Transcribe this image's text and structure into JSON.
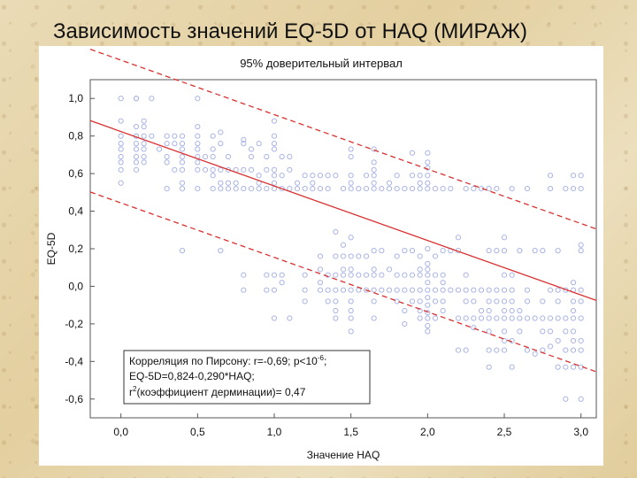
{
  "slide": {
    "title": "Зависимость значений EQ-5D от HAQ (МИРАЖ)"
  },
  "chart_data": {
    "type": "scatter",
    "title": "95% доверительный интервал",
    "xlabel": "Значение HAQ",
    "ylabel": "EQ-5D",
    "xlim": [
      -0.2,
      3.1
    ],
    "ylim": [
      -0.7,
      1.1
    ],
    "xticks": [
      0.0,
      0.5,
      1.0,
      1.5,
      2.0,
      2.5,
      3.0
    ],
    "xtick_labels": [
      "0,0",
      "0,5",
      "1,0",
      "1,5",
      "2,0",
      "2,5",
      "3,0"
    ],
    "yticks": [
      -0.6,
      -0.4,
      -0.2,
      0.0,
      0.2,
      0.4,
      0.6,
      0.8,
      1.0
    ],
    "ytick_labels": [
      "-0,6",
      "-0,4",
      "-0,2",
      "0,0",
      "0,2",
      "0,4",
      "0,6",
      "0,8",
      "1,0"
    ],
    "grid": false,
    "colors": {
      "points": "#a9b4e6",
      "fit": "#d93030",
      "ci": "#d93030"
    },
    "fit_line": {
      "intercept": 0.824,
      "slope": -0.29
    },
    "ci_band": {
      "upper_offset": 0.38,
      "lower_offset": -0.38
    },
    "annotation": {
      "line1_prefix": "Корреляция по Пирсону: r=-0,69; p<10",
      "line1_exp": "-6",
      "line1_suffix": ";",
      "line2": "EQ-5D=0,824-0,290*HAQ;",
      "line3_r": "r",
      "line3_exp": "2",
      "line3_rest": "(коэффициент дерминации)= 0,47"
    },
    "points": [
      [
        0,
        1.0
      ],
      [
        0,
        0.88
      ],
      [
        0,
        0.8
      ],
      [
        0,
        0.76
      ],
      [
        0,
        0.73
      ],
      [
        0,
        0.69
      ],
      [
        0,
        0.66
      ],
      [
        0,
        0.62
      ],
      [
        0,
        0.55
      ],
      [
        0.1,
        1.0
      ],
      [
        0.1,
        0.85
      ],
      [
        0.1,
        0.8
      ],
      [
        0.1,
        0.76
      ],
      [
        0.1,
        0.73
      ],
      [
        0.1,
        0.69
      ],
      [
        0.1,
        0.66
      ],
      [
        0.1,
        0.62
      ],
      [
        0.1,
        1.0
      ],
      [
        0.1,
        0.8
      ],
      [
        0.15,
        0.88
      ],
      [
        0.15,
        0.85
      ],
      [
        0.15,
        0.8
      ],
      [
        0.15,
        0.76
      ],
      [
        0.15,
        0.73
      ],
      [
        0.15,
        0.69
      ],
      [
        0.15,
        0.66
      ],
      [
        0.2,
        1.0
      ],
      [
        0.2,
        0.8
      ],
      [
        0.25,
        0.73
      ],
      [
        0.3,
        0.8
      ],
      [
        0.3,
        0.76
      ],
      [
        0.3,
        0.69
      ],
      [
        0.3,
        0.66
      ],
      [
        0.3,
        0.52
      ],
      [
        0.35,
        0.8
      ],
      [
        0.35,
        0.76
      ],
      [
        0.35,
        0.62
      ],
      [
        0.4,
        0.8
      ],
      [
        0.4,
        0.76
      ],
      [
        0.4,
        0.73
      ],
      [
        0.4,
        0.69
      ],
      [
        0.4,
        0.66
      ],
      [
        0.4,
        0.62
      ],
      [
        0.4,
        0.55
      ],
      [
        0.4,
        0.52
      ],
      [
        0.4,
        0.19
      ],
      [
        0.5,
        1.0
      ],
      [
        0.5,
        0.85
      ],
      [
        0.5,
        0.8
      ],
      [
        0.5,
        0.76
      ],
      [
        0.5,
        0.73
      ],
      [
        0.5,
        0.69
      ],
      [
        0.5,
        0.66
      ],
      [
        0.5,
        0.62
      ],
      [
        0.5,
        0.52
      ],
      [
        0.55,
        0.69
      ],
      [
        0.55,
        0.62
      ],
      [
        0.6,
        0.8
      ],
      [
        0.6,
        0.73
      ],
      [
        0.6,
        0.69
      ],
      [
        0.6,
        0.62
      ],
      [
        0.6,
        0.59
      ],
      [
        0.6,
        0.52
      ],
      [
        0.65,
        0.82
      ],
      [
        0.65,
        0.76
      ],
      [
        0.65,
        0.62
      ],
      [
        0.65,
        0.55
      ],
      [
        0.65,
        0.52
      ],
      [
        0.65,
        0.19
      ],
      [
        0.7,
        0.69
      ],
      [
        0.7,
        0.62
      ],
      [
        0.7,
        0.55
      ],
      [
        0.7,
        0.52
      ],
      [
        0.75,
        0.62
      ],
      [
        0.75,
        0.55
      ],
      [
        0.75,
        0.52
      ],
      [
        0.8,
        0.78
      ],
      [
        0.8,
        0.76
      ],
      [
        0.8,
        0.62
      ],
      [
        0.8,
        0.52
      ],
      [
        0.8,
        0.06
      ],
      [
        0.8,
        -0.02
      ],
      [
        0.85,
        0.73
      ],
      [
        0.85,
        0.69
      ],
      [
        0.85,
        0.62
      ],
      [
        0.85,
        0.52
      ],
      [
        0.9,
        0.76
      ],
      [
        0.9,
        0.59
      ],
      [
        0.9,
        0.55
      ],
      [
        0.9,
        0.52
      ],
      [
        0.95,
        0.69
      ],
      [
        0.95,
        0.62
      ],
      [
        0.95,
        0.52
      ],
      [
        0.95,
        0.06
      ],
      [
        0.95,
        -0.02
      ],
      [
        1.0,
        0.88
      ],
      [
        1.0,
        0.8
      ],
      [
        1.0,
        0.76
      ],
      [
        1.0,
        0.73
      ],
      [
        1.0,
        0.62
      ],
      [
        1.0,
        0.59
      ],
      [
        1.0,
        0.55
      ],
      [
        1.0,
        0.52
      ],
      [
        1.0,
        0.06
      ],
      [
        1.0,
        -0.02
      ],
      [
        1.0,
        -0.17
      ],
      [
        1.05,
        0.69
      ],
      [
        1.05,
        0.59
      ],
      [
        1.05,
        0.52
      ],
      [
        1.05,
        0.06
      ],
      [
        1.05,
        0.02
      ],
      [
        1.1,
        0.69
      ],
      [
        1.1,
        0.62
      ],
      [
        1.1,
        0.52
      ],
      [
        1.1,
        -0.17
      ],
      [
        1.15,
        0.55
      ],
      [
        1.15,
        0.52
      ],
      [
        1.2,
        0.59
      ],
      [
        1.2,
        0.52
      ],
      [
        1.2,
        0.06
      ],
      [
        1.2,
        -0.02
      ],
      [
        1.2,
        -0.08
      ],
      [
        1.25,
        0.59
      ],
      [
        1.25,
        0.55
      ],
      [
        1.25,
        0.52
      ],
      [
        1.3,
        0.59
      ],
      [
        1.3,
        0.52
      ],
      [
        1.3,
        0.16
      ],
      [
        1.3,
        0.09
      ],
      [
        1.3,
        0.02
      ],
      [
        1.3,
        -0.02
      ],
      [
        1.35,
        0.59
      ],
      [
        1.35,
        0.52
      ],
      [
        1.35,
        0.06
      ],
      [
        1.35,
        -0.02
      ],
      [
        1.35,
        -0.08
      ],
      [
        1.4,
        0.59
      ],
      [
        1.4,
        0.29
      ],
      [
        1.4,
        0.16
      ],
      [
        1.4,
        0.06
      ],
      [
        1.4,
        -0.02
      ],
      [
        1.4,
        -0.08
      ],
      [
        1.4,
        -0.13
      ],
      [
        1.4,
        -0.17
      ],
      [
        1.45,
        0.52
      ],
      [
        1.45,
        0.22
      ],
      [
        1.45,
        0.16
      ],
      [
        1.45,
        0.09
      ],
      [
        1.45,
        0.06
      ],
      [
        1.45,
        -0.02
      ],
      [
        1.5,
        0.73
      ],
      [
        1.5,
        0.69
      ],
      [
        1.5,
        0.59
      ],
      [
        1.5,
        0.55
      ],
      [
        1.5,
        0.52
      ],
      [
        1.5,
        0.26
      ],
      [
        1.5,
        0.16
      ],
      [
        1.5,
        0.09
      ],
      [
        1.5,
        0.06
      ],
      [
        1.5,
        -0.02
      ],
      [
        1.5,
        -0.08
      ],
      [
        1.5,
        -0.13
      ],
      [
        1.5,
        -0.17
      ],
      [
        1.5,
        -0.24
      ],
      [
        1.55,
        0.52
      ],
      [
        1.55,
        0.16
      ],
      [
        1.55,
        0.06
      ],
      [
        1.55,
        -0.02
      ],
      [
        1.6,
        0.59
      ],
      [
        1.6,
        0.52
      ],
      [
        1.6,
        0.16
      ],
      [
        1.6,
        0.06
      ],
      [
        1.6,
        -0.02
      ],
      [
        1.65,
        0.73
      ],
      [
        1.65,
        0.66
      ],
      [
        1.65,
        0.62
      ],
      [
        1.65,
        0.59
      ],
      [
        1.65,
        0.55
      ],
      [
        1.65,
        0.52
      ],
      [
        1.65,
        0.19
      ],
      [
        1.65,
        0.09
      ],
      [
        1.65,
        0.06
      ],
      [
        1.65,
        -0.02
      ],
      [
        1.65,
        -0.08
      ],
      [
        1.65,
        -0.17
      ],
      [
        1.7,
        0.52
      ],
      [
        1.7,
        0.19
      ],
      [
        1.7,
        0.06
      ],
      [
        1.7,
        -0.02
      ],
      [
        1.75,
        0.55
      ],
      [
        1.75,
        0.52
      ],
      [
        1.75,
        0.09
      ],
      [
        1.75,
        -0.02
      ],
      [
        1.8,
        0.59
      ],
      [
        1.8,
        0.52
      ],
      [
        1.8,
        0.16
      ],
      [
        1.8,
        0.06
      ],
      [
        1.8,
        -0.02
      ],
      [
        1.8,
        -0.08
      ],
      [
        1.85,
        0.52
      ],
      [
        1.85,
        0.19
      ],
      [
        1.85,
        0.06
      ],
      [
        1.85,
        -0.02
      ],
      [
        1.85,
        -0.13
      ],
      [
        1.85,
        -0.2
      ],
      [
        1.9,
        0.71
      ],
      [
        1.9,
        0.59
      ],
      [
        1.9,
        0.52
      ],
      [
        1.9,
        0.19
      ],
      [
        1.9,
        0.06
      ],
      [
        1.9,
        -0.02
      ],
      [
        1.9,
        -0.08
      ],
      [
        1.95,
        0.59
      ],
      [
        1.95,
        0.55
      ],
      [
        1.95,
        0.52
      ],
      [
        1.95,
        0.16
      ],
      [
        1.95,
        0.09
      ],
      [
        1.95,
        0.06
      ],
      [
        1.95,
        -0.02
      ],
      [
        1.95,
        -0.08
      ],
      [
        1.95,
        -0.13
      ],
      [
        1.95,
        -0.17
      ],
      [
        2.0,
        0.71
      ],
      [
        2.0,
        0.66
      ],
      [
        2.0,
        0.63
      ],
      [
        2.0,
        0.59
      ],
      [
        2.0,
        0.55
      ],
      [
        2.0,
        0.52
      ],
      [
        2.0,
        0.2
      ],
      [
        2.0,
        0.12
      ],
      [
        2.0,
        0.09
      ],
      [
        2.0,
        0.06
      ],
      [
        2.0,
        0.02
      ],
      [
        2.0,
        -0.02
      ],
      [
        2.0,
        -0.06
      ],
      [
        2.0,
        -0.1
      ],
      [
        2.0,
        -0.14
      ],
      [
        2.0,
        -0.17
      ],
      [
        2.0,
        -0.21
      ],
      [
        2.0,
        -0.24
      ],
      [
        2.05,
        0.52
      ],
      [
        2.05,
        0.16
      ],
      [
        2.05,
        0.06
      ],
      [
        2.05,
        -0.02
      ],
      [
        2.05,
        -0.08
      ],
      [
        2.05,
        -0.17
      ],
      [
        2.1,
        0.52
      ],
      [
        2.1,
        0.19
      ],
      [
        2.1,
        0.06
      ],
      [
        2.1,
        0.02
      ],
      [
        2.1,
        -0.02
      ],
      [
        2.1,
        -0.08
      ],
      [
        2.1,
        -0.13
      ],
      [
        2.15,
        0.52
      ],
      [
        2.15,
        0.19
      ],
      [
        2.15,
        -0.02
      ],
      [
        2.2,
        0.26
      ],
      [
        2.2,
        0.19
      ],
      [
        2.2,
        -0.02
      ],
      [
        2.2,
        -0.17
      ],
      [
        2.2,
        -0.34
      ],
      [
        2.25,
        0.52
      ],
      [
        2.25,
        0.06
      ],
      [
        2.25,
        -0.02
      ],
      [
        2.25,
        -0.08
      ],
      [
        2.25,
        -0.17
      ],
      [
        2.25,
        -0.34
      ],
      [
        2.3,
        0.52
      ],
      [
        2.3,
        -0.02
      ],
      [
        2.3,
        -0.08
      ],
      [
        2.3,
        -0.17
      ],
      [
        2.3,
        -0.22
      ],
      [
        2.35,
        0.52
      ],
      [
        2.35,
        -0.02
      ],
      [
        2.35,
        -0.13
      ],
      [
        2.35,
        -0.17
      ],
      [
        2.4,
        0.52
      ],
      [
        2.4,
        0.19
      ],
      [
        2.4,
        -0.02
      ],
      [
        2.4,
        -0.08
      ],
      [
        2.4,
        -0.13
      ],
      [
        2.4,
        -0.17
      ],
      [
        2.4,
        -0.24
      ],
      [
        2.4,
        -0.34
      ],
      [
        2.4,
        -0.43
      ],
      [
        2.45,
        0.52
      ],
      [
        2.45,
        0.19
      ],
      [
        2.45,
        -0.02
      ],
      [
        2.45,
        -0.08
      ],
      [
        2.45,
        -0.17
      ],
      [
        2.45,
        -0.34
      ],
      [
        2.5,
        0.26
      ],
      [
        2.5,
        0.19
      ],
      [
        2.5,
        0.06
      ],
      [
        2.5,
        -0.02
      ],
      [
        2.5,
        -0.08
      ],
      [
        2.5,
        -0.13
      ],
      [
        2.5,
        -0.17
      ],
      [
        2.5,
        -0.24
      ],
      [
        2.5,
        -0.29
      ],
      [
        2.5,
        -0.34
      ],
      [
        2.55,
        0.52
      ],
      [
        2.55,
        0.06
      ],
      [
        2.55,
        -0.02
      ],
      [
        2.55,
        -0.08
      ],
      [
        2.55,
        -0.13
      ],
      [
        2.55,
        -0.17
      ],
      [
        2.55,
        -0.29
      ],
      [
        2.55,
        -0.43
      ],
      [
        2.6,
        0.19
      ],
      [
        2.6,
        -0.13
      ],
      [
        2.6,
        -0.17
      ],
      [
        2.6,
        -0.24
      ],
      [
        2.65,
        0.52
      ],
      [
        2.65,
        -0.02
      ],
      [
        2.65,
        -0.08
      ],
      [
        2.65,
        -0.17
      ],
      [
        2.65,
        -0.34
      ],
      [
        2.7,
        0.19
      ],
      [
        2.7,
        -0.17
      ],
      [
        2.7,
        -0.36
      ],
      [
        2.75,
        0.19
      ],
      [
        2.75,
        -0.08
      ],
      [
        2.75,
        -0.17
      ],
      [
        2.75,
        -0.24
      ],
      [
        2.75,
        -0.34
      ],
      [
        2.8,
        0.59
      ],
      [
        2.8,
        0.52
      ],
      [
        2.8,
        -0.02
      ],
      [
        2.8,
        -0.17
      ],
      [
        2.8,
        -0.24
      ],
      [
        2.8,
        -0.32
      ],
      [
        2.85,
        0.19
      ],
      [
        2.85,
        -0.02
      ],
      [
        2.85,
        -0.08
      ],
      [
        2.85,
        -0.17
      ],
      [
        2.85,
        -0.29
      ],
      [
        2.85,
        -0.43
      ],
      [
        2.9,
        0.52
      ],
      [
        2.9,
        -0.02
      ],
      [
        2.9,
        -0.17
      ],
      [
        2.9,
        -0.24
      ],
      [
        2.9,
        -0.34
      ],
      [
        2.9,
        -0.43
      ],
      [
        2.9,
        -0.6
      ],
      [
        2.95,
        0.59
      ],
      [
        2.95,
        0.52
      ],
      [
        2.95,
        0.02
      ],
      [
        2.95,
        -0.02
      ],
      [
        2.95,
        -0.08
      ],
      [
        2.95,
        -0.13
      ],
      [
        2.95,
        -0.17
      ],
      [
        2.95,
        -0.24
      ],
      [
        2.95,
        -0.29
      ],
      [
        2.95,
        -0.34
      ],
      [
        2.95,
        -0.43
      ],
      [
        3.0,
        0.59
      ],
      [
        3.0,
        0.52
      ],
      [
        3.0,
        0.22
      ],
      [
        3.0,
        0.19
      ],
      [
        3.0,
        -0.02
      ],
      [
        3.0,
        -0.08
      ],
      [
        3.0,
        -0.17
      ],
      [
        3.0,
        -0.29
      ],
      [
        3.0,
        -0.34
      ],
      [
        3.0,
        -0.43
      ],
      [
        3.0,
        -0.6
      ]
    ]
  }
}
